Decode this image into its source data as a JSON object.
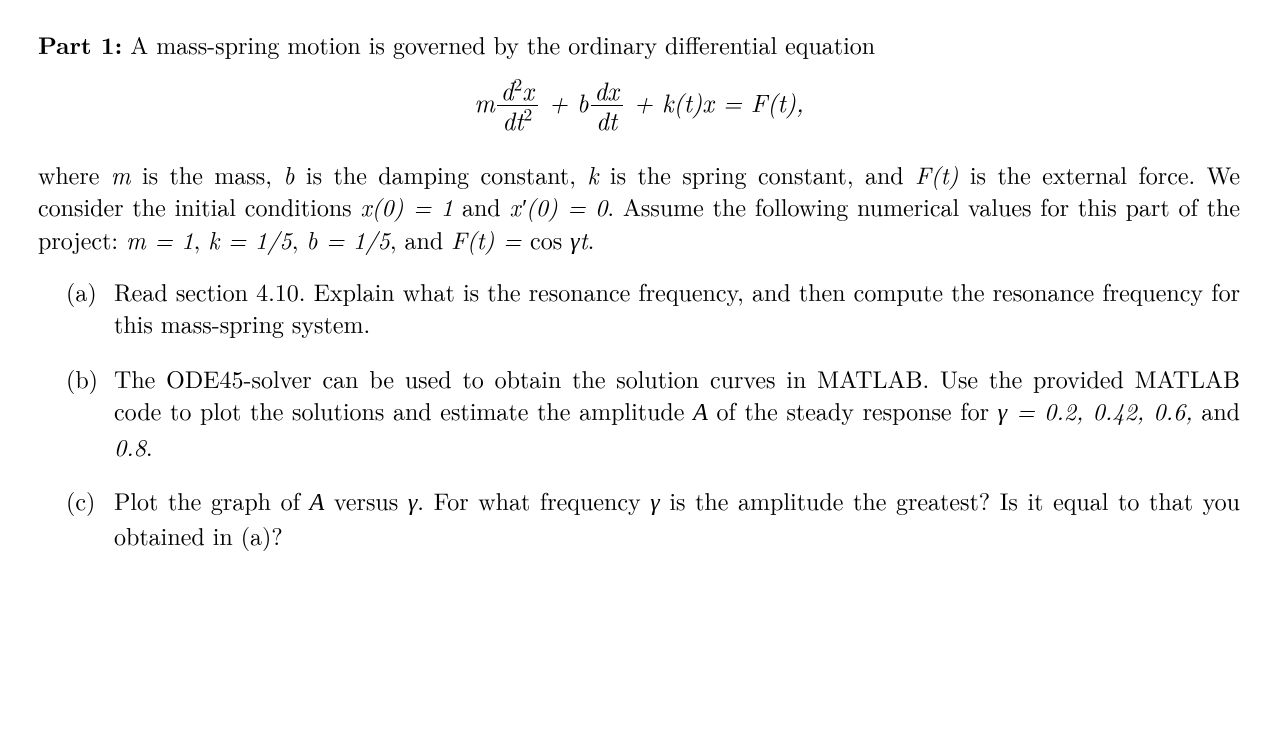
{
  "typography": {
    "font_family": "Latin Modern Roman / Computer Modern serif",
    "body_fontsize_pt": 18,
    "equation_fontsize_pt": 19,
    "color": "#000000",
    "background_color": "#ffffff",
    "text_align": "justify"
  },
  "header": {
    "part_label": "Part 1:",
    "intro_text": " A mass-spring motion is governed by the ordinary differential equation"
  },
  "equation": {
    "display": "m d²x/dt² + b dx/dt + k(t)x = F(t),",
    "terms": {
      "coef1": "m",
      "frac1_num": "d²x",
      "frac1_den": "dt²",
      "plus1": " + ",
      "coef2": "b",
      "frac2_num": "dx",
      "frac2_den": "dt",
      "plus2": " + ",
      "term3": "k(t)x",
      "eq": " = ",
      "rhs": "F(t),"
    }
  },
  "body_para": {
    "seg1": "where ",
    "m": "m",
    "seg2": " is the mass, ",
    "b": "b",
    "seg3": " is the damping constant, ",
    "k": "k",
    "seg4": " is the spring constant, and ",
    "Ft": "F(t)",
    "seg5": " is the external force.  We consider the initial conditions ",
    "ic1": "x(0) = 1",
    "seg6": " and ",
    "ic2": "x′(0) = 0",
    "seg7": ".  Assume the following numerical values for this part of the project: ",
    "val_m": "m = 1",
    "seg8": ", ",
    "val_k": "k = 1/5",
    "seg9": ", ",
    "val_b": "b = 1/5",
    "seg10": ", and ",
    "val_F_lhs": "F(t) = ",
    "val_F_cos": "cos ",
    "val_F_arg": "γt",
    "seg11": "."
  },
  "items": {
    "a": {
      "label": "(a)",
      "text": "Read section 4.10.  Explain what is the resonance frequency, and then compute the resonance frequency for this mass-spring system."
    },
    "b": {
      "label": "(b)",
      "seg1": "The ODE45-solver can be used to obtain the solution curves in MATLAB. Use the provided MATLAB code to plot the solutions and estimate the amplitude ",
      "A": "A",
      "seg2": " of the steady response for ",
      "gamma_vals": "γ = 0.2, 0.42, 0.6,",
      "seg3": " and ",
      "gamma_last": "0.8",
      "seg4": "."
    },
    "c": {
      "label": "(c)",
      "seg1": "Plot the graph of ",
      "A": "A",
      "seg2": " versus ",
      "gamma1": "γ",
      "seg3": ". For what frequency ",
      "gamma2": "γ",
      "seg4": " is the amplitude the greatest? Is it equal to that you obtained in (a)?"
    }
  }
}
